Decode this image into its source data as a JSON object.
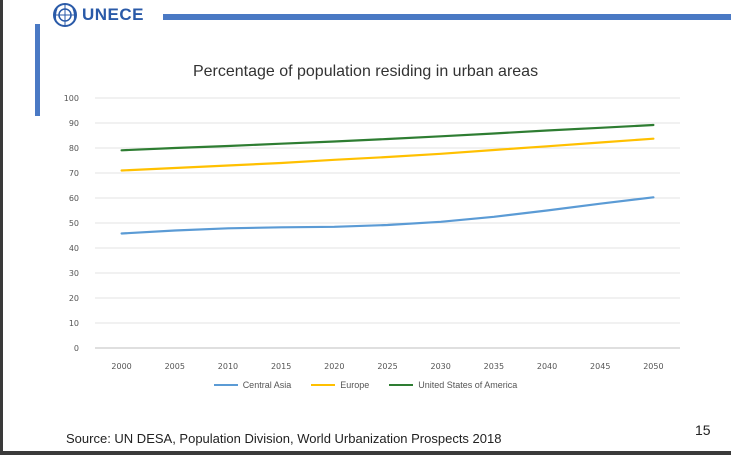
{
  "header": {
    "org_name": "UNECE",
    "emblem_icon": "un-emblem-icon"
  },
  "colors": {
    "brand_blue": "#4a79c4",
    "central_asia": "#5b9bd5",
    "europe": "#ffc000",
    "usa": "#2e7d32"
  },
  "chart_data": {
    "type": "line",
    "title": "Percentage of population residing in urban areas",
    "xlabel": "",
    "ylabel": "",
    "x": [
      "2000",
      "2005",
      "2010",
      "2015",
      "2020",
      "2025",
      "2030",
      "2035",
      "2040",
      "2045",
      "2050"
    ],
    "ylim": [
      0,
      100
    ],
    "yticks": [
      "0",
      "10",
      "20",
      "30",
      "40",
      "50",
      "60",
      "70",
      "80",
      "90",
      "100"
    ],
    "grid": true,
    "legend_position": "bottom",
    "series": [
      {
        "name": "Central Asia",
        "color": "#5b9bd5",
        "values": [
          45.8,
          47,
          47.9,
          48.3,
          48.5,
          49.2,
          50.5,
          52.5,
          55,
          57.7,
          60.3
        ]
      },
      {
        "name": "Europe",
        "color": "#ffc000",
        "values": [
          71,
          72,
          73,
          74,
          75.3,
          76.4,
          77.7,
          79.2,
          80.7,
          82.2,
          83.7
        ]
      },
      {
        "name": "United States of America",
        "color": "#2e7d32",
        "values": [
          79.1,
          80,
          80.8,
          81.7,
          82.6,
          83.6,
          84.7,
          85.8,
          87,
          88.1,
          89.2
        ]
      }
    ]
  },
  "footer": {
    "source": "Source: UN DESA, Population Division, World Urbanization Prospects 2018",
    "page_number": "15"
  }
}
